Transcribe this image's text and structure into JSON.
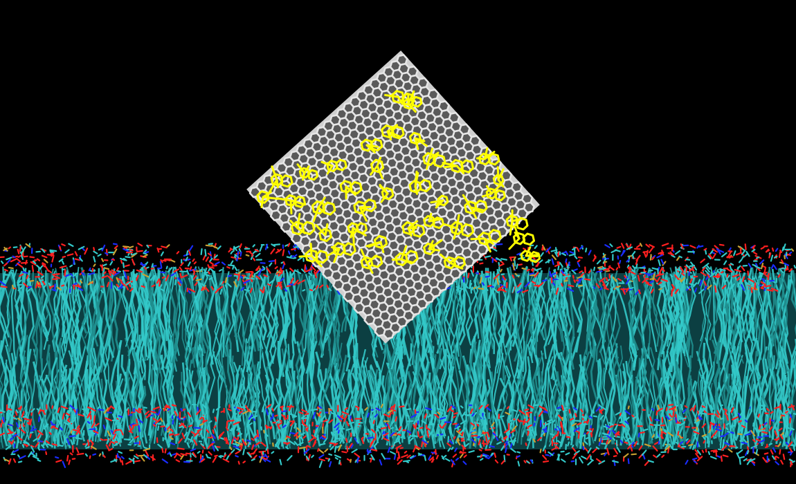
{
  "scene": {
    "description_label": "",
    "colors": {
      "background": "#000000",
      "lipid_tail": "#33c9c9",
      "lipid_tail_dark": "#1f8f8f",
      "oxygen": "#ff2020",
      "nitrogen": "#1a2dff",
      "phosphorus": "#c8a032",
      "graphene": "#e6e6e6",
      "graphene_shadow": "#8a8a8a",
      "ligand": "#ffff00",
      "ligand_dark": "#b8b800"
    },
    "elements": {
      "membrane": "lipid-bilayer",
      "sheet": "graphene-nanosheet",
      "molecules": "yellow-aromatic-ligands"
    }
  }
}
